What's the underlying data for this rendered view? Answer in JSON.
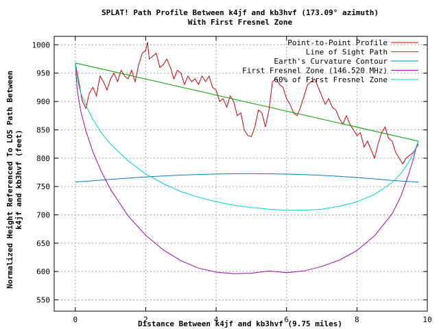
{
  "chart_data": {
    "type": "line",
    "title": "SPLAT! Path Profile Between k4jf and kb3hvf (173.09° azimuth)",
    "subtitle": "With First Fresnel Zone",
    "xlabel": "Distance Between k4jf and kb3hvf (9.75 miles)",
    "ylabel": "Normalized Height Referenced To LOS Path Between",
    "ylabel2": "k4jf and kb3hvf (feet)",
    "xlim": [
      -0.6,
      10
    ],
    "ylim": [
      530,
      1015
    ],
    "x_ticks": [
      0,
      2,
      4,
      6,
      8,
      10
    ],
    "y_ticks": [
      550,
      600,
      650,
      700,
      750,
      800,
      850,
      900,
      950,
      1000
    ],
    "grid": true,
    "legend_position": "top-right",
    "series": [
      {
        "name": "Point-to-Point Profile",
        "color": "#cc0000",
        "x": [
          0,
          0.1,
          0.2,
          0.3,
          0.4,
          0.5,
          0.6,
          0.7,
          0.8,
          0.9,
          1.0,
          1.1,
          1.2,
          1.3,
          1.4,
          1.5,
          1.6,
          1.7,
          1.8,
          1.9,
          2.0,
          2.05,
          2.1,
          2.2,
          2.3,
          2.4,
          2.5,
          2.6,
          2.7,
          2.8,
          2.9,
          3.0,
          3.1,
          3.2,
          3.3,
          3.4,
          3.5,
          3.6,
          3.7,
          3.8,
          3.9,
          4.0,
          4.1,
          4.2,
          4.3,
          4.4,
          4.5,
          4.6,
          4.7,
          4.8,
          4.9,
          5.0,
          5.1,
          5.2,
          5.3,
          5.4,
          5.5,
          5.6,
          5.7,
          5.8,
          5.9,
          6.0,
          6.1,
          6.2,
          6.3,
          6.4,
          6.5,
          6.6,
          6.7,
          6.8,
          6.9,
          7.0,
          7.1,
          7.2,
          7.3,
          7.4,
          7.5,
          7.6,
          7.7,
          7.8,
          7.9,
          8.0,
          8.1,
          8.2,
          8.3,
          8.4,
          8.5,
          8.6,
          8.7,
          8.8,
          8.9,
          9.0,
          9.1,
          9.2,
          9.3,
          9.4,
          9.5,
          9.6,
          9.75
        ],
        "values": [
          968,
          935,
          900,
          888,
          915,
          925,
          910,
          945,
          935,
          920,
          940,
          950,
          935,
          955,
          945,
          940,
          955,
          935,
          965,
          985,
          990,
          1005,
          975,
          980,
          985,
          960,
          965,
          975,
          960,
          940,
          955,
          950,
          930,
          945,
          935,
          940,
          930,
          945,
          935,
          945,
          925,
          920,
          900,
          905,
          890,
          910,
          900,
          875,
          880,
          850,
          840,
          838,
          855,
          885,
          880,
          855,
          885,
          935,
          940,
          930,
          925,
          905,
          895,
          880,
          875,
          890,
          910,
          930,
          935,
          940,
          925,
          910,
          895,
          905,
          890,
          885,
          870,
          860,
          875,
          860,
          850,
          840,
          845,
          820,
          830,
          815,
          800,
          825,
          845,
          855,
          835,
          830,
          810,
          800,
          790,
          800,
          805,
          810,
          825
        ]
      },
      {
        "name": "Line of Sight Path",
        "color": "#00a000",
        "x": [
          0,
          9.75
        ],
        "values": [
          968,
          830
        ]
      },
      {
        "name": "Earth's Curvature Contour",
        "color": "#0080c0",
        "x": [
          0,
          0.5,
          1,
          1.5,
          2,
          2.5,
          3,
          3.5,
          4,
          4.5,
          5,
          5.5,
          6,
          6.5,
          7,
          7.5,
          8,
          8.5,
          9,
          9.5,
          9.75
        ],
        "values": [
          758,
          760,
          762.5,
          764.8,
          766.9,
          768.6,
          770.1,
          771.2,
          772,
          772.5,
          772.7,
          772.4,
          771.9,
          771,
          769.6,
          767.9,
          765.8,
          763.4,
          760.7,
          758.6,
          758
        ]
      },
      {
        "name": "First Fresnel Zone (146.520 MHz)",
        "color": "#a000c0",
        "x": [
          0,
          0.05,
          0.15,
          0.3,
          0.5,
          0.75,
          1,
          1.5,
          2,
          2.5,
          3,
          3.5,
          4,
          4.5,
          5,
          5.5,
          6,
          6.5,
          7,
          7.5,
          8,
          8.5,
          9,
          9.25,
          9.45,
          9.6,
          9.7,
          9.75
        ],
        "values": [
          968,
          922,
          884,
          848,
          811,
          775,
          745,
          698,
          664,
          638,
          619,
          606,
          599,
          596,
          597,
          601,
          598,
          601,
          609,
          620,
          637,
          663,
          702,
          733,
          768,
          798,
          823,
          830
        ]
      },
      {
        "name": "60% of First Fresnel Zone",
        "color": "#00d0d0",
        "x": [
          0,
          0.05,
          0.15,
          0.3,
          0.5,
          0.75,
          1,
          1.5,
          2,
          2.5,
          3,
          3.5,
          4,
          4.5,
          5,
          5.5,
          6,
          6.5,
          7,
          7.5,
          8,
          8.5,
          9,
          9.25,
          9.45,
          9.6,
          9.7,
          9.75
        ],
        "values": [
          968,
          940,
          916,
          893,
          868,
          844,
          825,
          795,
          772,
          755,
          741,
          731,
          723,
          717,
          713,
          710,
          708,
          708,
          710,
          715,
          723,
          736,
          757,
          773,
          791,
          808,
          822,
          830
        ]
      }
    ]
  }
}
